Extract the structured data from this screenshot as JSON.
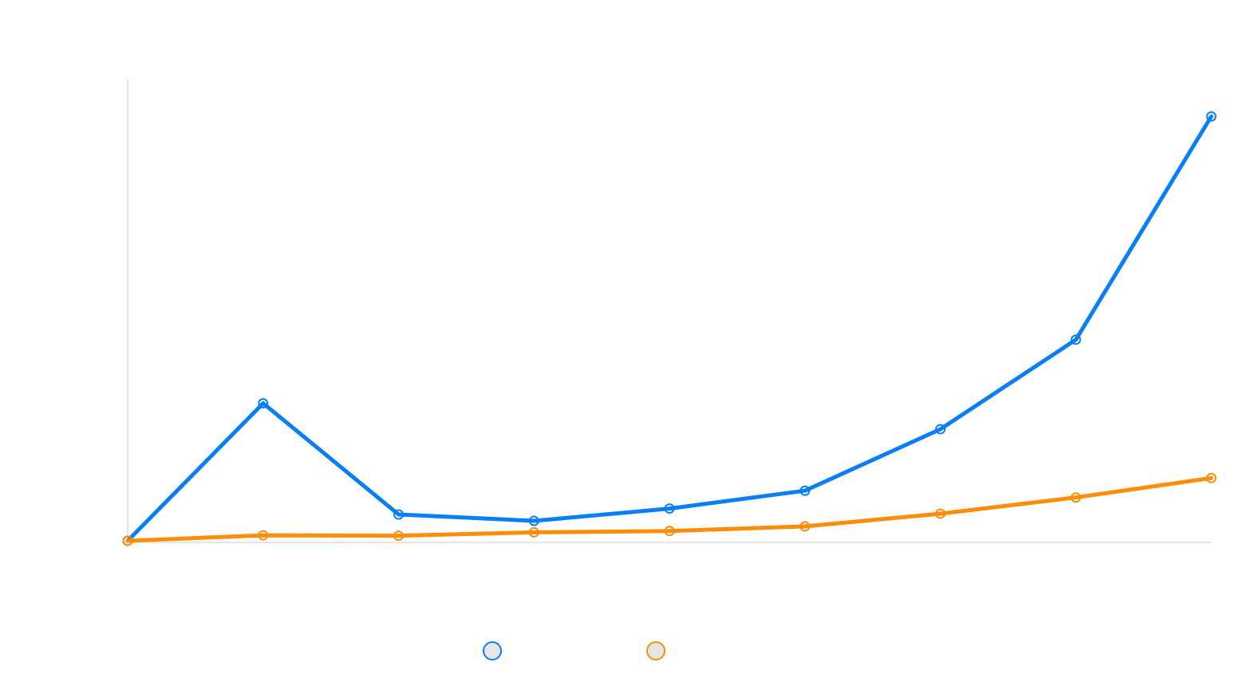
{
  "chart_data": {
    "type": "line",
    "title": "",
    "xlabel": "",
    "ylabel": "",
    "categories": [
      "",
      "",
      "",
      "",
      "",
      "",
      "",
      "",
      ""
    ],
    "ylim": [
      0,
      100
    ],
    "grid": false,
    "legend_position": "bottom-center",
    "series": [
      {
        "name": "",
        "color": "#0a7ff5",
        "values": [
          0,
          32.4,
          6.2,
          4.7,
          7.6,
          11.8,
          26.3,
          47.4,
          100
        ]
      },
      {
        "name": "",
        "color": "#ff8c0a",
        "values": [
          0,
          1.3,
          1.2,
          2.0,
          2.3,
          3.4,
          6.4,
          10.2,
          14.8
        ]
      }
    ]
  }
}
